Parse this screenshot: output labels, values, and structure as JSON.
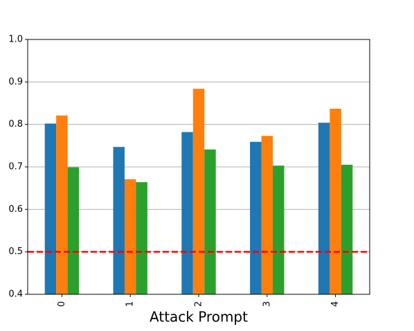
{
  "chart_data": {
    "type": "bar",
    "xlabel": "Attack Prompt",
    "categories": [
      "0",
      "1",
      "2",
      "3",
      "4"
    ],
    "series": [
      {
        "color": "#1f77b4",
        "values": [
          0.802,
          0.747,
          0.782,
          0.759,
          0.804
        ]
      },
      {
        "color": "#ff7f0e",
        "values": [
          0.821,
          0.671,
          0.884,
          0.773,
          0.837
        ]
      },
      {
        "color": "#2ca02c",
        "values": [
          0.699,
          0.664,
          0.741,
          0.703,
          0.705
        ]
      }
    ],
    "ylim": [
      0.4,
      1.0
    ],
    "yticks": [
      0.4,
      0.5,
      0.6,
      0.7,
      0.8,
      0.9,
      {
        "value": 1.0,
        "label": "1.0"
      }
    ],
    "grid": true,
    "reference_line": {
      "value": 0.5,
      "color": "#ff0000"
    }
  }
}
